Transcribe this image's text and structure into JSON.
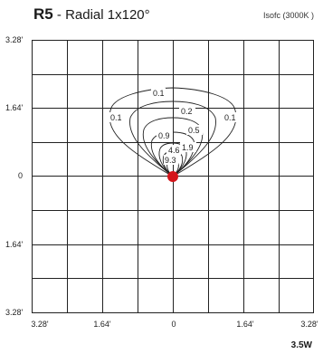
{
  "title": {
    "code": "R5",
    "separator": " - ",
    "text": "Radial 1x120°"
  },
  "subtitle": "Isofc (3000K )",
  "axes": {
    "y_ticks": [
      "3.28'",
      "1.64'",
      "0",
      "1.64'",
      "3.28'"
    ],
    "x_ticks": [
      "3.28'",
      "1.64'",
      "0",
      "1.64'",
      "3.28'"
    ]
  },
  "contours": [
    {
      "label": "9.3"
    },
    {
      "label": "4.6"
    },
    {
      "label": "1.9"
    },
    {
      "label": "0.9"
    },
    {
      "label": "0.5"
    },
    {
      "label": "0.2"
    },
    {
      "label": "0.1",
      "instances": [
        "0.1",
        "0.1",
        "0.1"
      ]
    }
  ],
  "source_marker": {
    "color": "#d4141a"
  },
  "power": "3.5W",
  "colors": {
    "grid": "#222222",
    "contour": "#222222",
    "source": "#d4141a"
  }
}
